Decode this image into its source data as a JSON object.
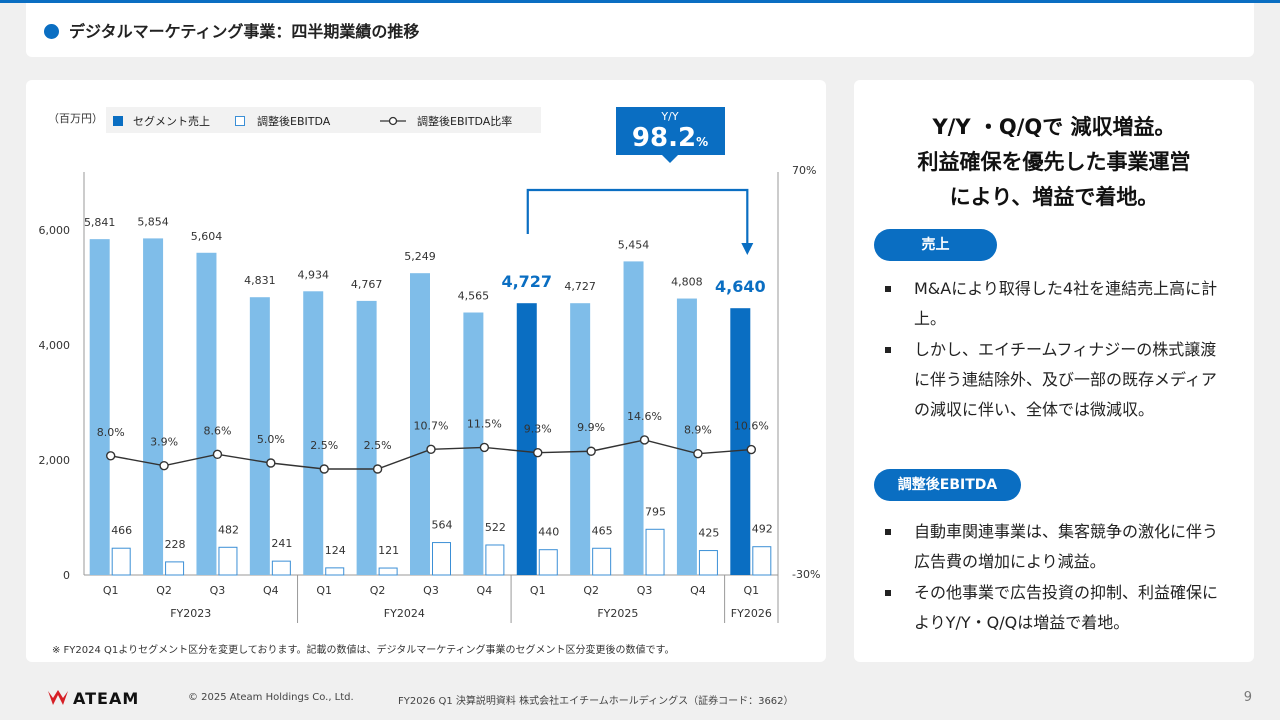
{
  "header": {
    "title": "デジタルマーケティング事業：四半期業績の推移"
  },
  "chart_data": {
    "type": "bar",
    "unit_label": "（百万円）",
    "legend": {
      "sales": "セグメント売上",
      "ebitda": "調整後EBITDA",
      "ratio": "調整後EBITDA比率"
    },
    "categories": [
      "Q1",
      "Q2",
      "Q3",
      "Q4",
      "Q1",
      "Q2",
      "Q3",
      "Q4",
      "Q1",
      "Q2",
      "Q3",
      "Q4",
      "Q1"
    ],
    "fiscal_years": [
      {
        "label": "FY2023",
        "start": 0,
        "end": 3
      },
      {
        "label": "FY2024",
        "start": 4,
        "end": 7
      },
      {
        "label": "FY2025",
        "start": 8,
        "end": 11
      },
      {
        "label": "FY2026",
        "start": 12,
        "end": 12
      }
    ],
    "series": [
      {
        "name": "セグメント売上",
        "values": [
          5841,
          5854,
          5604,
          4831,
          4934,
          4767,
          5249,
          4565,
          4727,
          4727,
          5454,
          4808,
          4640
        ]
      },
      {
        "name": "調整後EBITDA",
        "values": [
          466,
          228,
          482,
          241,
          124,
          121,
          564,
          522,
          440,
          465,
          795,
          425,
          492
        ]
      },
      {
        "name": "調整後EBITDA比率",
        "values": [
          8.0,
          3.9,
          8.6,
          5.0,
          2.5,
          2.5,
          10.7,
          11.5,
          9.3,
          9.9,
          14.6,
          8.9,
          10.6
        ]
      }
    ],
    "value_labels": [
      "5,841",
      "5,854",
      "5,604",
      "4,831",
      "4,934",
      "4,767",
      "5,249",
      "4,565",
      "4,727",
      "4,727",
      "5,454",
      "4,808",
      "4,640"
    ],
    "ebitda_labels": [
      "466",
      "228",
      "482",
      "241",
      "124",
      "121",
      "564",
      "522",
      "440",
      "465",
      "795",
      "425",
      "492"
    ],
    "ratio_labels": [
      "8.0%",
      "3.9%",
      "8.6%",
      "5.0%",
      "2.5%",
      "2.5%",
      "10.7%",
      "11.5%",
      "9.3%",
      "9.9%",
      "14.6%",
      "8.9%",
      "10.6%"
    ],
    "highlight_indices": [
      8,
      12
    ],
    "y_left": {
      "min": 0,
      "max": 7000,
      "ticks": [
        0,
        2000,
        4000,
        6000
      ],
      "tick_labels": [
        "0",
        "2,000",
        "4,000",
        "6,000"
      ]
    },
    "y_right": {
      "min": -30,
      "max": 70,
      "tick_labels": [
        "-30%",
        "70%"
      ]
    },
    "yoy": {
      "label": "Y/Y",
      "value": "98.2",
      "unit": "%",
      "from_index": 8,
      "to_index": 12
    },
    "colors": {
      "bar": "#7fbde9",
      "highlight": "#0a6ec2",
      "ebitda_border": "#3b8fd6",
      "line": "#333333",
      "callout": "#0a6ec2"
    }
  },
  "footnote": "※ FY2024 Q1よりセグメント区分を変更しております。記載の数値は、デジタルマーケティング事業のセグメント区分変更後の数値です。",
  "summary": {
    "headline": [
      "Y/Y ・Q/Qで 減収増益。",
      "利益確保を優先した事業運営",
      "により、増益で着地。"
    ],
    "sales_label": "売上",
    "sales_points": [
      "M&Aにより取得した4社を連結売上高に計上。",
      "しかし、エイチームフィナジーの株式譲渡に伴う連結除外、及び一部の既存メディアの減収に伴い、全体では微減収。"
    ],
    "ebitda_label": "調整後EBITDA",
    "ebitda_points": [
      "自動車関連事業は、集客競争の激化に伴う広告費の増加により減益。",
      "その他事業で広告投資の抑制、利益確保によりY/Y・Q/Qは増益で着地。"
    ]
  },
  "footer": {
    "logo_text": "ATEAM",
    "copyright": "© 2025 Ateam Holdings Co., Ltd.",
    "document": "FY2026 Q1 決算説明資料 株式会社エイチームホールディングス（証券コード：3662）",
    "page": "9"
  }
}
